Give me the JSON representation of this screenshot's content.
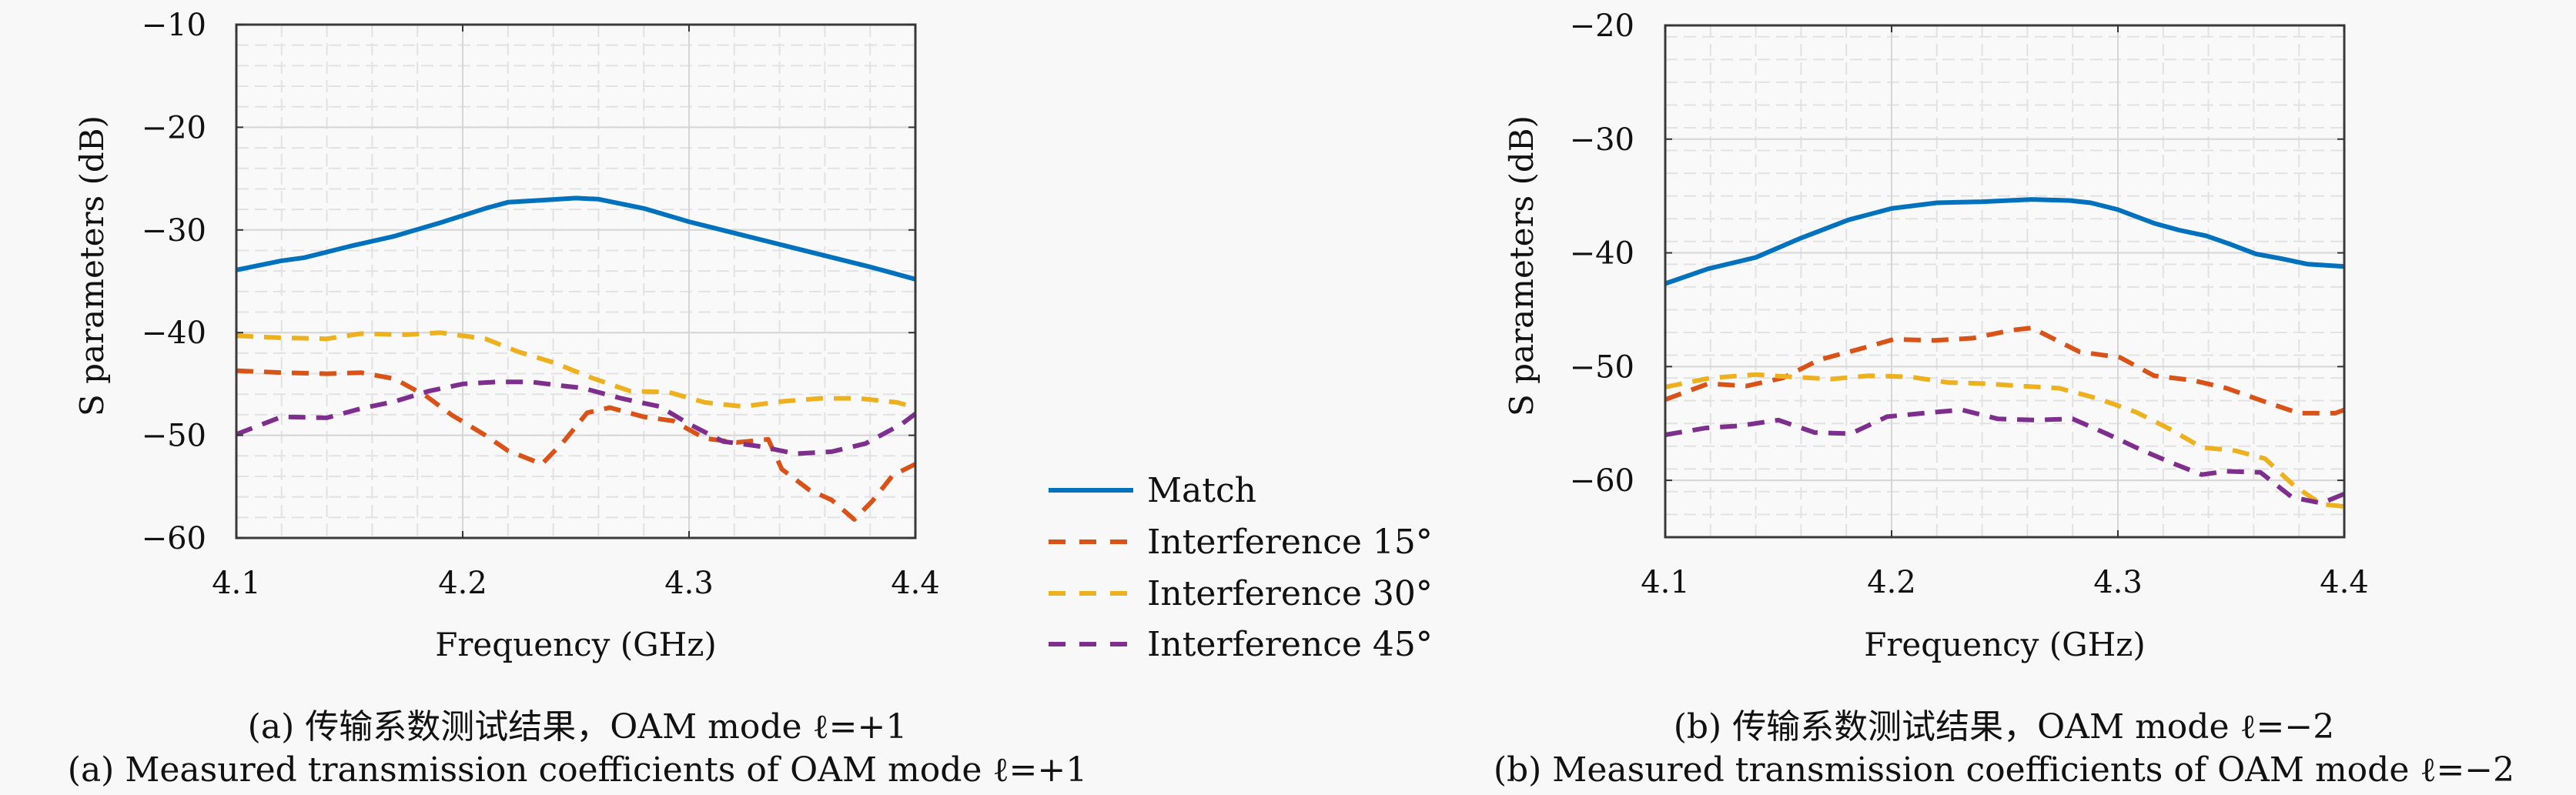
{
  "chart_data": [
    {
      "type": "line",
      "panel": "a",
      "xlabel": "Frequency (GHz)",
      "ylabel": "S parameters (dB)",
      "xlim": [
        4.1,
        4.4
      ],
      "ylim": [
        -60,
        -10
      ],
      "xticks": [
        4.1,
        4.2,
        4.3,
        4.4
      ],
      "xtick_labels": [
        "4.1",
        "4.2",
        "4.3",
        "4.4"
      ],
      "yticks": [
        -10,
        -20,
        -30,
        -40,
        -50,
        -60
      ],
      "ytick_labels": [
        "−10",
        "−20",
        "−30",
        "−40",
        "−50",
        "−60"
      ],
      "grid": true,
      "minor_grid": true,
      "caption_cn": "(a) 传输系数测试结果，OAM mode ℓ=+1",
      "caption_en": "(a) Measured transmission coefficients of OAM mode ℓ=+1",
      "series": [
        {
          "name": "Match",
          "style": "solid",
          "color": "#0072bd",
          "x": [
            4.1,
            4.12,
            4.13,
            4.15,
            4.17,
            4.19,
            4.21,
            4.22,
            4.235,
            4.25,
            4.26,
            4.28,
            4.3,
            4.32,
            4.34,
            4.36,
            4.38,
            4.4
          ],
          "y": [
            -33.9,
            -33.0,
            -32.7,
            -31.6,
            -30.6,
            -29.3,
            -27.9,
            -27.3,
            -27.1,
            -26.9,
            -27.0,
            -27.9,
            -29.2,
            -30.3,
            -31.4,
            -32.5,
            -33.6,
            -34.8
          ]
        },
        {
          "name": "Interference 15°",
          "style": "dashed",
          "color": "#d95319",
          "x": [
            4.1,
            4.12,
            4.14,
            4.155,
            4.17,
            4.184,
            4.195,
            4.21,
            4.22,
            4.235,
            4.245,
            4.255,
            4.265,
            4.28,
            4.293,
            4.307,
            4.321,
            4.335,
            4.341,
            4.353,
            4.363,
            4.373,
            4.381,
            4.39,
            4.4
          ],
          "y": [
            -43.7,
            -43.9,
            -44.0,
            -43.9,
            -44.5,
            -46.2,
            -48.0,
            -50.0,
            -51.5,
            -52.8,
            -50.5,
            -47.8,
            -47.3,
            -48.2,
            -48.6,
            -50.3,
            -50.7,
            -50.4,
            -53.3,
            -55.3,
            -56.3,
            -58.2,
            -56.4,
            -53.9,
            -52.8
          ]
        },
        {
          "name": "Interference 30°",
          "style": "dashed",
          "color": "#edb120",
          "x": [
            4.1,
            4.12,
            4.14,
            4.155,
            4.175,
            4.19,
            4.21,
            4.225,
            4.24,
            4.257,
            4.274,
            4.291,
            4.307,
            4.324,
            4.341,
            4.358,
            4.375,
            4.392,
            4.4
          ],
          "y": [
            -40.3,
            -40.5,
            -40.6,
            -40.1,
            -40.2,
            -40.0,
            -40.6,
            -41.9,
            -42.9,
            -44.4,
            -45.7,
            -45.8,
            -46.8,
            -47.2,
            -46.7,
            -46.4,
            -46.4,
            -46.8,
            -47.3
          ]
        },
        {
          "name": "Interference 45°",
          "style": "dashed",
          "color": "#7e2f8e",
          "x": [
            4.1,
            4.12,
            4.14,
            4.155,
            4.17,
            4.185,
            4.2,
            4.215,
            4.23,
            4.245,
            4.253,
            4.27,
            4.287,
            4.3,
            4.315,
            4.332,
            4.347,
            4.363,
            4.378,
            4.394,
            4.4
          ],
          "y": [
            -49.9,
            -48.2,
            -48.3,
            -47.4,
            -46.7,
            -45.7,
            -45.0,
            -44.8,
            -44.8,
            -45.2,
            -45.4,
            -46.4,
            -47.2,
            -48.9,
            -50.6,
            -51.1,
            -51.8,
            -51.6,
            -50.8,
            -48.9,
            -47.9
          ]
        }
      ]
    },
    {
      "type": "line",
      "panel": "b",
      "xlabel": "Frequency (GHz)",
      "ylabel": "S parameters (dB)",
      "xlim": [
        4.1,
        4.4
      ],
      "ylim": [
        -65,
        -20
      ],
      "xticks": [
        4.1,
        4.2,
        4.3,
        4.4
      ],
      "xtick_labels": [
        "4.1",
        "4.2",
        "4.3",
        "4.4"
      ],
      "yticks": [
        -20,
        -30,
        -40,
        -50,
        -60
      ],
      "ytick_labels": [
        "−20",
        "−30",
        "−40",
        "−50",
        "−60"
      ],
      "grid": true,
      "minor_grid": true,
      "caption_cn": "(b) 传输系数测试结果，OAM mode ℓ=−2",
      "caption_en": "(b) Measured transmission coefficients of OAM mode ℓ=−2",
      "series": [
        {
          "name": "Match",
          "style": "solid",
          "color": "#0072bd",
          "x": [
            4.1,
            4.119,
            4.14,
            4.16,
            4.181,
            4.2,
            4.22,
            4.24,
            4.262,
            4.279,
            4.288,
            4.3,
            4.316,
            4.327,
            4.339,
            4.349,
            4.361,
            4.372,
            4.384,
            4.4
          ],
          "y": [
            -42.7,
            -41.4,
            -40.4,
            -38.7,
            -37.1,
            -36.1,
            -35.6,
            -35.5,
            -35.3,
            -35.4,
            -35.6,
            -36.2,
            -37.4,
            -38.0,
            -38.5,
            -39.2,
            -40.1,
            -40.5,
            -41.0,
            -41.2
          ]
        },
        {
          "name": "Interference 15°",
          "style": "dashed",
          "color": "#d95319",
          "x": [
            4.1,
            4.119,
            4.136,
            4.152,
            4.168,
            4.185,
            4.201,
            4.219,
            4.236,
            4.253,
            4.262,
            4.283,
            4.301,
            4.316,
            4.333,
            4.348,
            4.365,
            4.38,
            4.396,
            4.4
          ],
          "y": [
            -52.9,
            -51.5,
            -51.7,
            -51.0,
            -49.4,
            -48.5,
            -47.6,
            -47.7,
            -47.5,
            -46.8,
            -46.6,
            -48.7,
            -49.2,
            -50.8,
            -51.2,
            -51.9,
            -53.1,
            -54.1,
            -54.1,
            -53.8
          ]
        },
        {
          "name": "Interference 30°",
          "style": "dashed",
          "color": "#edb120",
          "x": [
            4.1,
            4.12,
            4.14,
            4.155,
            4.173,
            4.19,
            4.208,
            4.225,
            4.242,
            4.257,
            4.274,
            4.291,
            4.308,
            4.323,
            4.337,
            4.352,
            4.365,
            4.378,
            4.39,
            4.4
          ],
          "y": [
            -51.8,
            -51.0,
            -50.7,
            -50.9,
            -51.1,
            -50.8,
            -50.9,
            -51.4,
            -51.5,
            -51.7,
            -51.9,
            -52.8,
            -54.0,
            -55.5,
            -57.1,
            -57.4,
            -58.1,
            -60.5,
            -62.1,
            -62.3
          ]
        },
        {
          "name": "Interference 45°",
          "style": "dashed",
          "color": "#7e2f8e",
          "x": [
            4.1,
            4.118,
            4.133,
            4.15,
            4.166,
            4.182,
            4.198,
            4.214,
            4.231,
            4.247,
            4.263,
            4.28,
            4.295,
            4.31,
            4.323,
            4.337,
            4.348,
            4.363,
            4.377,
            4.39,
            4.4
          ],
          "y": [
            -56.0,
            -55.4,
            -55.2,
            -54.7,
            -55.8,
            -55.9,
            -54.4,
            -54.1,
            -53.8,
            -54.6,
            -54.7,
            -54.6,
            -55.9,
            -57.3,
            -58.4,
            -59.5,
            -59.2,
            -59.3,
            -61.5,
            -62.0,
            -61.2
          ]
        }
      ]
    }
  ],
  "legend": {
    "placement": "between-panels",
    "entries": [
      "Match",
      "Interference 15°",
      "Interference 30°",
      "Interference 45°"
    ]
  }
}
